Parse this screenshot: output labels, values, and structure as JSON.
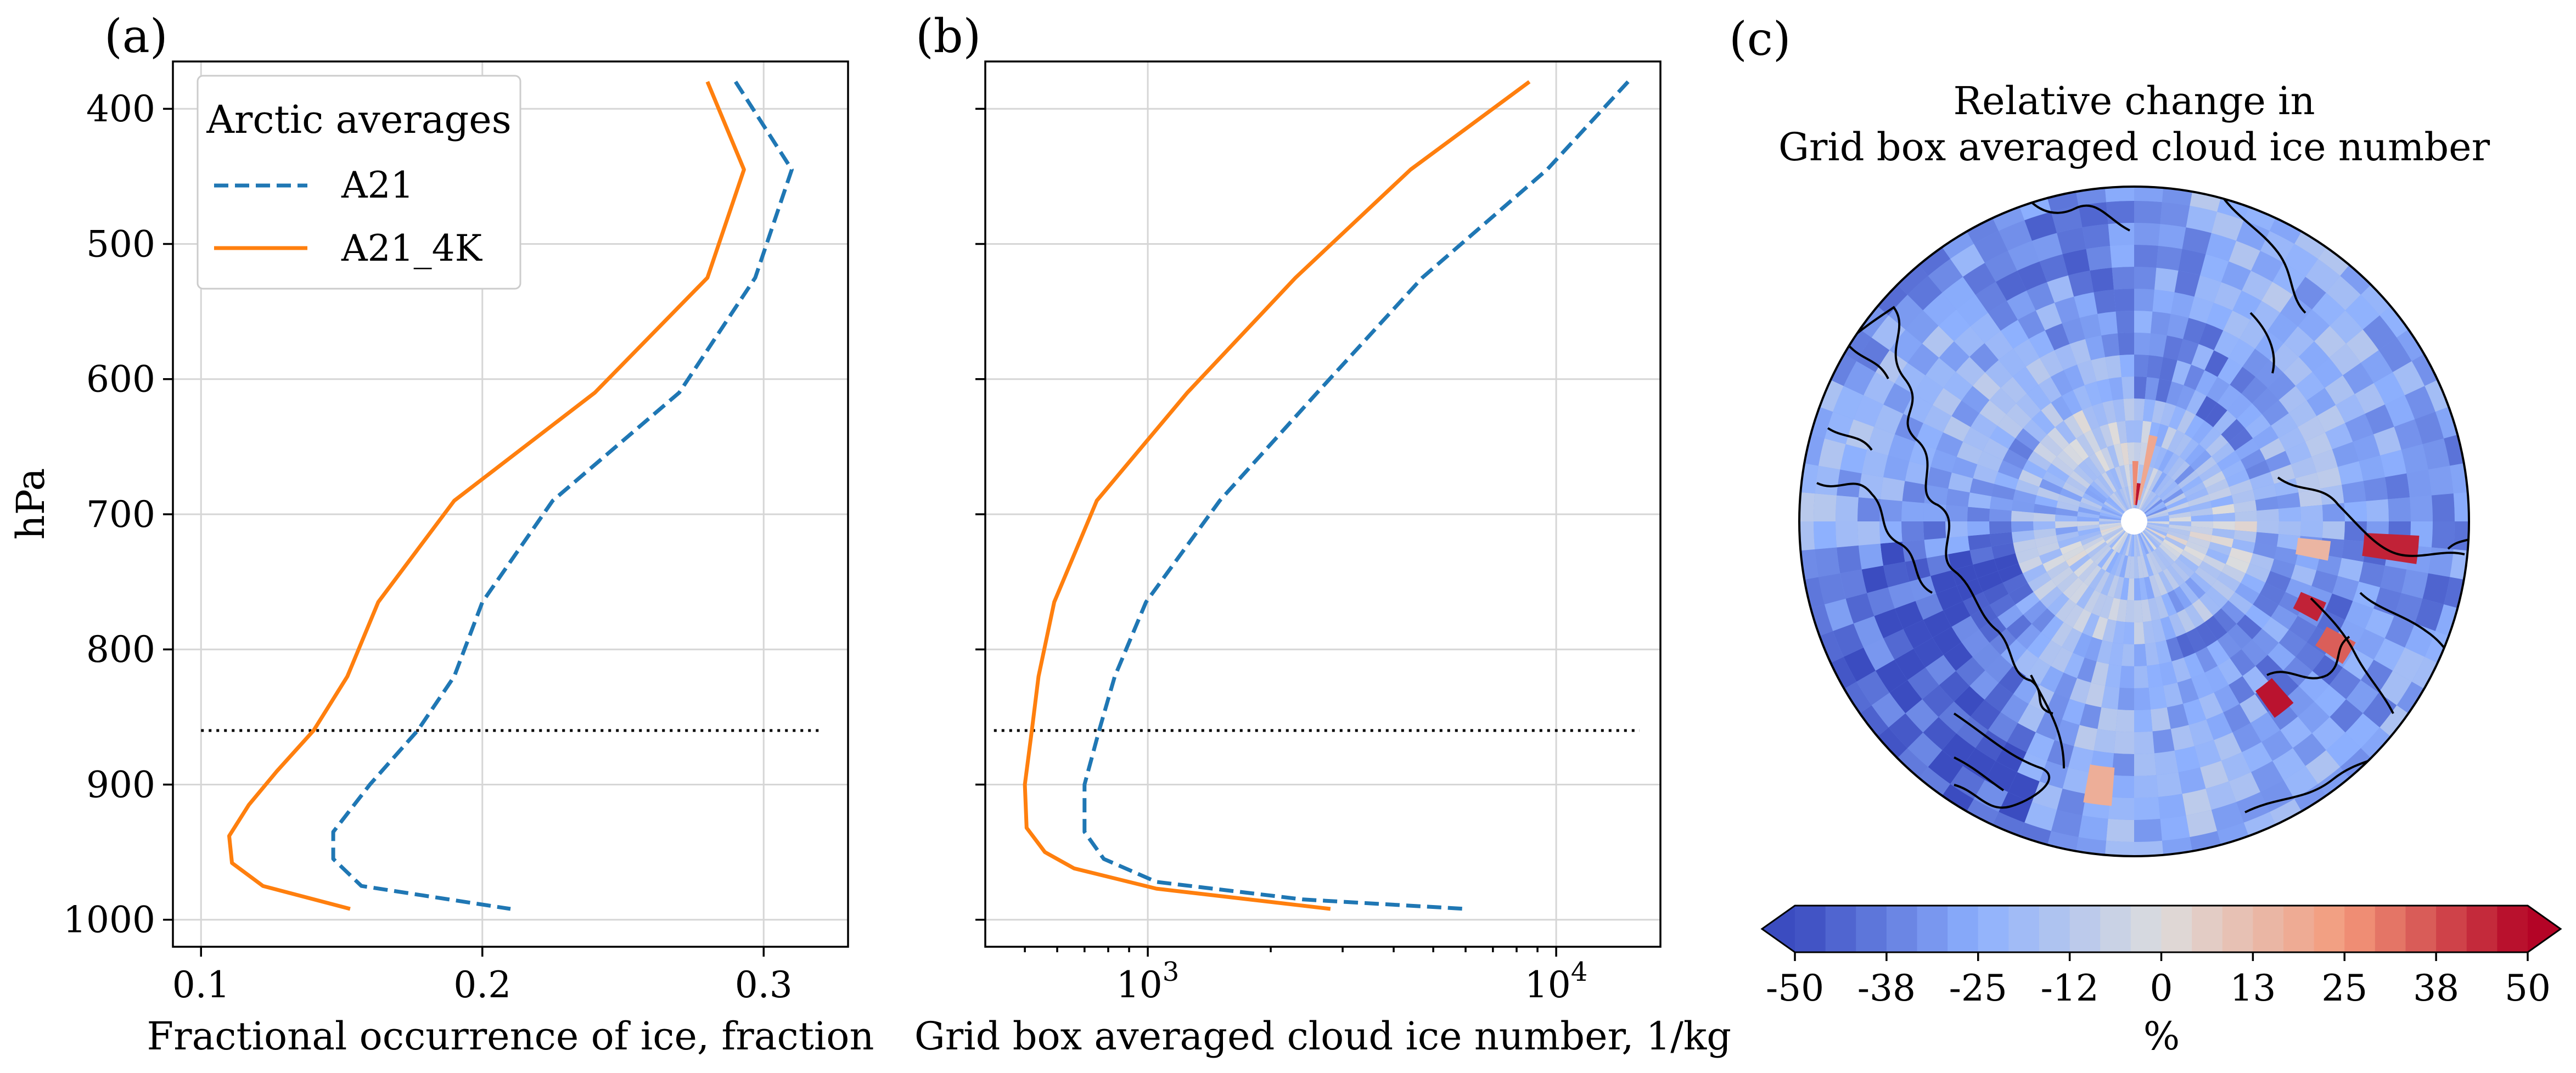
{
  "chart_data": [
    {
      "type": "line",
      "panel_label": "(a)",
      "xlabel": "Fractional occurrence of ice, fraction",
      "ylabel": "hPa",
      "xlim": [
        0.09,
        0.33
      ],
      "ylim": [
        1020,
        365
      ],
      "xticks": [
        0.1,
        0.2,
        0.3
      ],
      "xtick_labels": [
        "0.1",
        "0.2",
        "0.3"
      ],
      "yticks": [
        400,
        500,
        600,
        700,
        800,
        900,
        1000
      ],
      "ytick_labels": [
        "400",
        "500",
        "600",
        "700",
        "800",
        "900",
        "1000"
      ],
      "grid": true,
      "legend": {
        "title": "Arctic averages",
        "placement": "top-left",
        "entries": [
          "A21",
          "A21_4K"
        ]
      },
      "reference_line": {
        "y": 860,
        "style": "dotted",
        "x_range": [
          0.1,
          0.32
        ]
      },
      "series": [
        {
          "name": "A21",
          "style": "dashed",
          "color": "#1f77b4",
          "points": [
            [
              0.29,
              380
            ],
            [
              0.31,
              445
            ],
            [
              0.297,
              525
            ],
            [
              0.27,
              610
            ],
            [
              0.225,
              690
            ],
            [
              0.2,
              765
            ],
            [
              0.19,
              820
            ],
            [
              0.177,
              860
            ],
            [
              0.16,
              900
            ],
            [
              0.147,
              935
            ],
            [
              0.147,
              955
            ],
            [
              0.157,
              975
            ],
            [
              0.21,
              992
            ]
          ]
        },
        {
          "name": "A21_4K",
          "style": "solid",
          "color": "#ff7f0e",
          "points": [
            [
              0.28,
              380
            ],
            [
              0.293,
              445
            ],
            [
              0.28,
              525
            ],
            [
              0.24,
              610
            ],
            [
              0.19,
              690
            ],
            [
              0.163,
              765
            ],
            [
              0.152,
              820
            ],
            [
              0.14,
              860
            ],
            [
              0.127,
              890
            ],
            [
              0.117,
              915
            ],
            [
              0.11,
              938
            ],
            [
              0.111,
              958
            ],
            [
              0.122,
              975
            ],
            [
              0.153,
              992
            ]
          ]
        }
      ]
    },
    {
      "type": "line",
      "panel_label": "(b)",
      "xlabel": "Grid box averaged cloud ice number, 1/kg",
      "xscale": "log",
      "xlim": [
        400,
        18000
      ],
      "ylim": [
        1020,
        365
      ],
      "xticks": [
        1000,
        10000
      ],
      "xtick_labels": [
        {
          "base": "10",
          "exp": "3"
        },
        {
          "base": "10",
          "exp": "4"
        }
      ],
      "yticks": [
        400,
        500,
        600,
        700,
        800,
        900,
        1000
      ],
      "grid": true,
      "reference_line": {
        "y": 860,
        "style": "dotted",
        "x_range": [
          420,
          16000
        ]
      },
      "series": [
        {
          "name": "A21",
          "style": "dashed",
          "color": "#1f77b4",
          "points": [
            [
              15000,
              380
            ],
            [
              9500,
              445
            ],
            [
              4700,
              525
            ],
            [
              2600,
              610
            ],
            [
              1500,
              690
            ],
            [
              990,
              765
            ],
            [
              830,
              820
            ],
            [
              760,
              860
            ],
            [
              700,
              900
            ],
            [
              700,
              935
            ],
            [
              780,
              955
            ],
            [
              1050,
              972
            ],
            [
              2400,
              985
            ],
            [
              6000,
              992
            ]
          ]
        },
        {
          "name": "A21_4K",
          "style": "solid",
          "color": "#ff7f0e",
          "points": [
            [
              8600,
              380
            ],
            [
              4400,
              445
            ],
            [
              2300,
              525
            ],
            [
              1250,
              610
            ],
            [
              750,
              690
            ],
            [
              590,
              765
            ],
            [
              540,
              820
            ],
            [
              520,
              860
            ],
            [
              500,
              900
            ],
            [
              505,
              932
            ],
            [
              560,
              950
            ],
            [
              660,
              962
            ],
            [
              1050,
              977
            ],
            [
              2800,
              992
            ]
          ]
        }
      ]
    },
    {
      "type": "heatmap",
      "panel_label": "(c)",
      "title_line1": "Relative change in",
      "title_line2": "Grid box averaged cloud ice number",
      "projection": "north-polar-stereographic",
      "colormap": "coolwarm",
      "colorbar": {
        "orientation": "horizontal",
        "placement": "bottom",
        "label": "%",
        "range": [
          -50,
          50
        ],
        "ticks": [
          "-50",
          "-38",
          "-25",
          "-12",
          "0",
          "13",
          "25",
          "38",
          "50"
        ],
        "extend": "both",
        "levels": 24
      }
    }
  ]
}
